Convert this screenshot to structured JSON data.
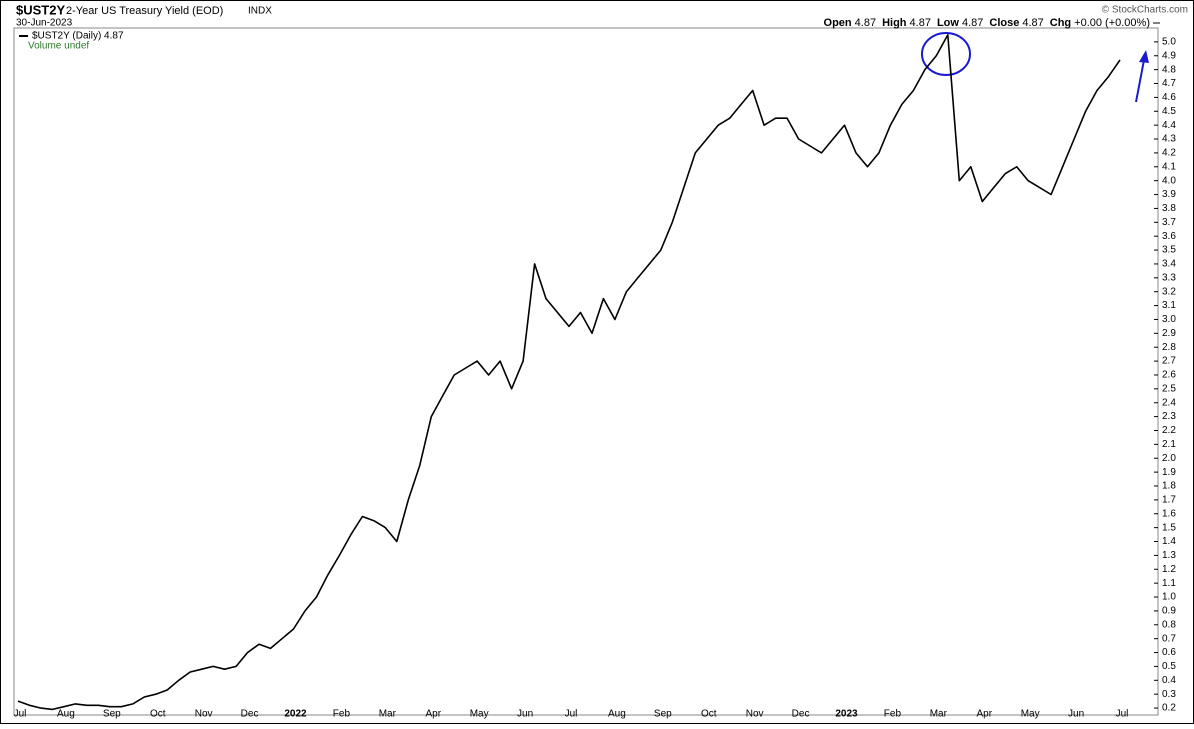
{
  "chart_data": {
    "type": "line",
    "symbol": "$UST2Y",
    "title": "2-Year US Treasury Yield (EOD)",
    "exchange": "INDX",
    "date": "30-Jun-2023",
    "credit": "© StockCharts.com",
    "quote": [
      {
        "label": "Open",
        "value": "4.87"
      },
      {
        "label": "High",
        "value": "4.87"
      },
      {
        "label": "Low",
        "value": "4.87"
      },
      {
        "label": "Close",
        "value": "4.87"
      },
      {
        "label": "Chg",
        "value": "+0.00 (+0.00%)"
      }
    ],
    "volume_label": "Volume undef",
    "categories": [
      "Jul",
      null,
      null,
      null,
      "Aug",
      null,
      null,
      null,
      "Sep",
      null,
      null,
      null,
      "Oct",
      null,
      null,
      null,
      "Nov",
      null,
      null,
      null,
      "Dec",
      null,
      null,
      null,
      "2022",
      null,
      null,
      null,
      "Feb",
      null,
      null,
      null,
      "Mar",
      null,
      null,
      null,
      "Apr",
      null,
      null,
      null,
      "May",
      null,
      null,
      null,
      "Jun",
      null,
      null,
      null,
      "Jul",
      null,
      null,
      null,
      "Aug",
      null,
      null,
      null,
      "Sep",
      null,
      null,
      null,
      "Oct",
      null,
      null,
      null,
      "Nov",
      null,
      null,
      null,
      "Dec",
      null,
      null,
      null,
      "2023",
      null,
      null,
      null,
      "Feb",
      null,
      null,
      null,
      "Mar",
      null,
      null,
      null,
      "Apr",
      null,
      null,
      null,
      "May",
      null,
      null,
      null,
      "Jun",
      null,
      null,
      null,
      "Jul"
    ],
    "series": [
      {
        "name": "$UST2Y (Daily) 4.87",
        "color": "#000000",
        "values": [
          0.25,
          0.22,
          0.2,
          0.19,
          0.21,
          0.23,
          0.22,
          0.22,
          0.21,
          0.21,
          0.23,
          0.28,
          0.3,
          0.33,
          0.4,
          0.46,
          0.48,
          0.5,
          0.48,
          0.5,
          0.6,
          0.66,
          0.63,
          0.7,
          0.77,
          0.9,
          1.0,
          1.16,
          1.3,
          1.45,
          1.58,
          1.55,
          1.5,
          1.4,
          1.7,
          1.95,
          2.3,
          2.45,
          2.6,
          2.65,
          2.7,
          2.6,
          2.7,
          2.5,
          2.7,
          3.4,
          3.15,
          3.05,
          2.95,
          3.05,
          2.9,
          3.15,
          3.0,
          3.2,
          3.3,
          3.4,
          3.5,
          3.7,
          3.95,
          4.2,
          4.3,
          4.4,
          4.45,
          4.55,
          4.65,
          4.4,
          4.45,
          4.45,
          4.3,
          4.25,
          4.2,
          4.3,
          4.4,
          4.2,
          4.1,
          4.2,
          4.4,
          4.55,
          4.65,
          4.8,
          4.9,
          5.05,
          4.0,
          4.1,
          3.85,
          3.95,
          4.05,
          4.1,
          4.0,
          3.95,
          3.9,
          4.1,
          4.3,
          4.5,
          4.65,
          4.75,
          4.87
        ]
      }
    ],
    "ylim": [
      0.15,
      5.1
    ],
    "yticks": [
      0.2,
      0.3,
      0.4,
      0.5,
      0.6,
      0.7,
      0.8,
      0.9,
      {
        "value": 1,
        "label": "1.0"
      },
      1.1,
      1.2,
      1.3,
      1.4,
      1.5,
      1.6,
      1.7,
      1.8,
      1.9,
      {
        "value": 2,
        "label": "2.0"
      },
      2.1,
      2.2,
      2.3,
      2.4,
      2.5,
      2.6,
      2.7,
      2.8,
      2.9,
      {
        "value": 3,
        "label": "3.0"
      },
      3.1,
      3.2,
      3.3,
      3.4,
      3.5,
      3.6,
      3.7,
      3.8,
      3.9,
      {
        "value": 4,
        "label": "4.0"
      },
      4.1,
      4.2,
      4.3,
      4.4,
      4.5,
      4.6,
      4.7,
      4.8,
      4.9,
      {
        "value": 5,
        "label": "5.0"
      }
    ],
    "grid": false
  }
}
